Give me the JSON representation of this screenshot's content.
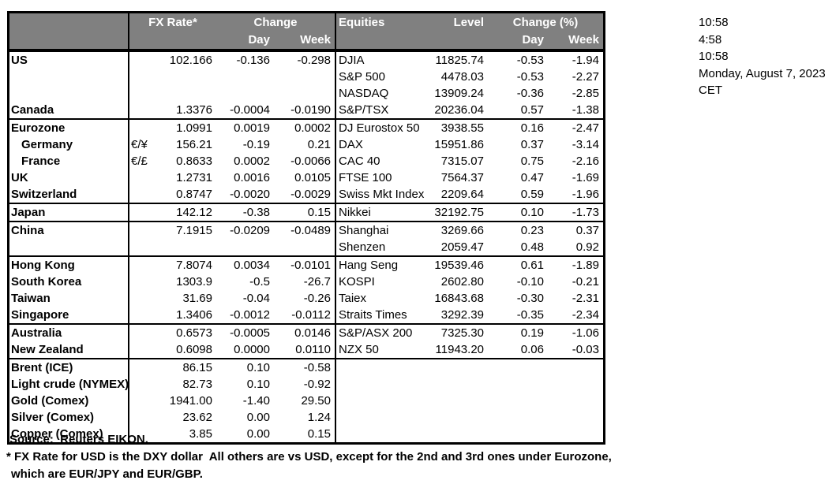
{
  "table": {
    "header": {
      "fx_rate": "FX Rate*",
      "change": "Change",
      "day": "Day",
      "week": "Week",
      "equities": "Equities",
      "level": "Level",
      "change_pct": "Change (%)"
    },
    "rows": [
      {
        "country": "US",
        "pair": "",
        "fx": "102.166",
        "day": "-0.136",
        "week": "-0.298",
        "equity": "DJIA",
        "level": "11825.74",
        "eday": "-0.53",
        "eweek": "-1.94",
        "group": true
      },
      {
        "country": "",
        "pair": "",
        "fx": "",
        "day": "",
        "week": "",
        "equity": "S&P 500",
        "level": "4478.03",
        "eday": "-0.53",
        "eweek": "-2.27"
      },
      {
        "country": "",
        "pair": "",
        "fx": "",
        "day": "",
        "week": "",
        "equity": "NASDAQ",
        "level": "13909.24",
        "eday": "-0.36",
        "eweek": "-2.85"
      },
      {
        "country": "Canada",
        "pair": "",
        "fx": "1.3376",
        "day": "-0.0004",
        "week": "-0.0190",
        "equity": "S&P/TSX",
        "level": "20236.04",
        "eday": "0.57",
        "eweek": "-1.38"
      },
      {
        "country": "Eurozone",
        "pair": "",
        "fx": "1.0991",
        "day": "0.0019",
        "week": "0.0002",
        "equity": "DJ Eurostox 50",
        "level": "3938.55",
        "eday": "0.16",
        "eweek": "-2.47",
        "group": true
      },
      {
        "country": "Germany",
        "indent": true,
        "pair": "€/¥",
        "fx": "156.21",
        "day": "-0.19",
        "week": "0.21",
        "equity": "DAX",
        "level": "15951.86",
        "eday": "0.37",
        "eweek": "-3.14"
      },
      {
        "country": "France",
        "indent": true,
        "pair": "€/£",
        "fx": "0.8633",
        "day": "0.0002",
        "week": "-0.0066",
        "equity": "CAC 40",
        "level": "7315.07",
        "eday": "0.75",
        "eweek": "-2.16"
      },
      {
        "country": "UK",
        "pair": "",
        "fx": "1.2731",
        "day": "0.0016",
        "week": "0.0105",
        "equity": "FTSE 100",
        "level": "7564.37",
        "eday": "0.47",
        "eweek": "-1.69"
      },
      {
        "country": "Switzerland",
        "pair": "",
        "fx": "0.8747",
        "day": "-0.0020",
        "week": "-0.0029",
        "equity": "Swiss Mkt Index",
        "level": "2209.64",
        "eday": "0.59",
        "eweek": "-1.96"
      },
      {
        "country": "Japan",
        "pair": "",
        "fx": "142.12",
        "day": "-0.38",
        "week": "0.15",
        "equity": "Nikkei",
        "level": "32192.75",
        "eday": "0.10",
        "eweek": "-1.73",
        "group": true
      },
      {
        "country": "China",
        "pair": "",
        "fx": "7.1915",
        "day": "-0.0209",
        "week": "-0.0489",
        "equity": "Shanghai",
        "level": "3269.66",
        "eday": "0.23",
        "eweek": "0.37",
        "group": true
      },
      {
        "country": "",
        "pair": "",
        "fx": "",
        "day": "",
        "week": "",
        "equity": "Shenzen",
        "level": "2059.47",
        "eday": "0.48",
        "eweek": "0.92"
      },
      {
        "country": "Hong Kong",
        "pair": "",
        "fx": "7.8074",
        "day": "0.0034",
        "week": "-0.0101",
        "equity": "Hang Seng",
        "level": "19539.46",
        "eday": "0.61",
        "eweek": "-1.89",
        "group": true
      },
      {
        "country": "South Korea",
        "pair": "",
        "fx": "1303.9",
        "day": "-0.5",
        "week": "-26.7",
        "equity": "KOSPI",
        "level": "2602.80",
        "eday": "-0.10",
        "eweek": "-0.21"
      },
      {
        "country": "Taiwan",
        "pair": "",
        "fx": "31.69",
        "day": "-0.04",
        "week": "-0.26",
        "equity": "Taiex",
        "level": "16843.68",
        "eday": "-0.30",
        "eweek": "-2.31"
      },
      {
        "country": "Singapore",
        "pair": "",
        "fx": "1.3406",
        "day": "-0.0012",
        "week": "-0.0112",
        "equity": "Straits Times",
        "level": "3292.39",
        "eday": "-0.35",
        "eweek": "-2.34"
      },
      {
        "country": "Australia",
        "pair": "",
        "fx": "0.6573",
        "day": "-0.0005",
        "week": "0.0146",
        "equity": "S&P/ASX 200",
        "level": "7325.30",
        "eday": "0.19",
        "eweek": "-1.06",
        "group": true
      },
      {
        "country": "New Zealand",
        "pair": "",
        "fx": "0.6098",
        "day": "0.0000",
        "week": "0.0110",
        "equity": "NZX 50",
        "level": "11943.20",
        "eday": "0.06",
        "eweek": "-0.03"
      },
      {
        "country": "Brent (ICE)",
        "pair": "",
        "fx": "86.15",
        "day": "0.10",
        "week": "-0.58",
        "equity": "",
        "level": "",
        "eday": "",
        "eweek": "",
        "group": true
      },
      {
        "country": "Light crude (NYMEX)",
        "pair": "",
        "fx": "82.73",
        "day": "0.10",
        "week": "-0.92",
        "equity": "",
        "level": "",
        "eday": "",
        "eweek": ""
      },
      {
        "country": "Gold (Comex)",
        "pair": "",
        "fx": "1941.00",
        "day": "-1.40",
        "week": "29.50",
        "equity": "",
        "level": "",
        "eday": "",
        "eweek": ""
      },
      {
        "country": "Silver (Comex)",
        "pair": "",
        "fx": "23.62",
        "day": "0.00",
        "week": "1.24",
        "equity": "",
        "level": "",
        "eday": "",
        "eweek": ""
      },
      {
        "country": "Copper (Comex)",
        "pair": "",
        "fx": "3.85",
        "day": "0.00",
        "week": "0.15",
        "equity": "",
        "level": "",
        "eday": "",
        "eweek": ""
      }
    ]
  },
  "timestamps": [
    "10:58",
    "4:58",
    "10:58",
    "Monday, August 7, 2023",
    "CET"
  ],
  "footer": {
    "source": "Source:  Reuters EIKON.",
    "footnote1": "* FX Rate for USD is the DXY dollar  All others are vs USD, except for the 2nd and 3rd ones under Eurozone,",
    "footnote2": "which are EUR/JPY and EUR/GBP."
  },
  "colors": {
    "header_bg": "#808080",
    "header_text": "#ffffff",
    "border": "#000000"
  }
}
